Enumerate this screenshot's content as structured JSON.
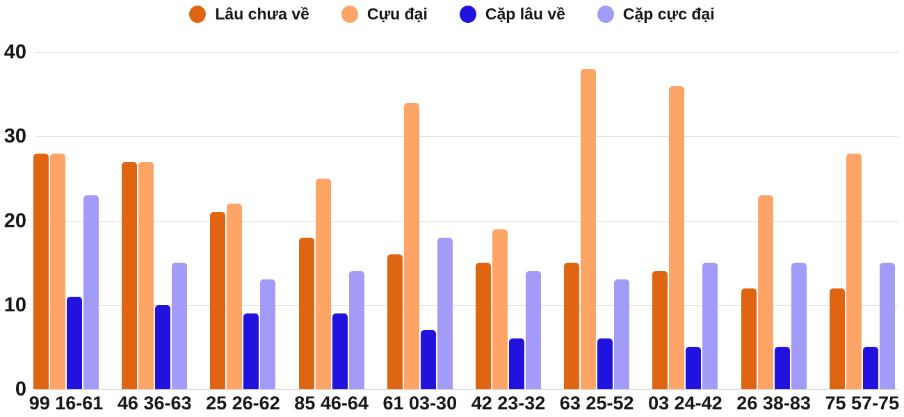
{
  "chart_data": {
    "type": "bar",
    "title": "",
    "xlabel": "",
    "ylabel": "",
    "categories": [
      "99 16-61",
      "46 36-63",
      "25 26-62",
      "85 46-64",
      "61 03-30",
      "42 23-32",
      "63 25-52",
      "03 24-42",
      "26 38-83",
      "75 57-75"
    ],
    "series": [
      {
        "name": "Lâu chưa về",
        "color": "#E06512",
        "values": [
          28,
          27,
          21,
          18,
          16,
          15,
          15,
          14,
          12,
          12
        ]
      },
      {
        "name": "Cựu đại",
        "color": "#FFA467",
        "values": [
          28,
          27,
          22,
          25,
          34,
          19,
          38,
          36,
          23,
          28
        ]
      },
      {
        "name": "Cặp lâu về",
        "color": "#2112DE",
        "values": [
          11,
          10,
          9,
          9,
          7,
          6,
          6,
          5,
          5,
          5
        ]
      },
      {
        "name": "Cặp cực đại",
        "color": "#A29BF8",
        "values": [
          23,
          15,
          13,
          14,
          18,
          14,
          13,
          15,
          15,
          15
        ]
      }
    ],
    "ylim": [
      0,
      40
    ],
    "yticks": [
      0,
      10,
      20,
      30,
      40
    ],
    "grid": true,
    "legend_position": "top"
  },
  "style": {
    "background": "#FFFFFF",
    "gridline_color": "#E3E3E3",
    "baseline_color": "#D9D9D9",
    "text_color": "#161616"
  }
}
